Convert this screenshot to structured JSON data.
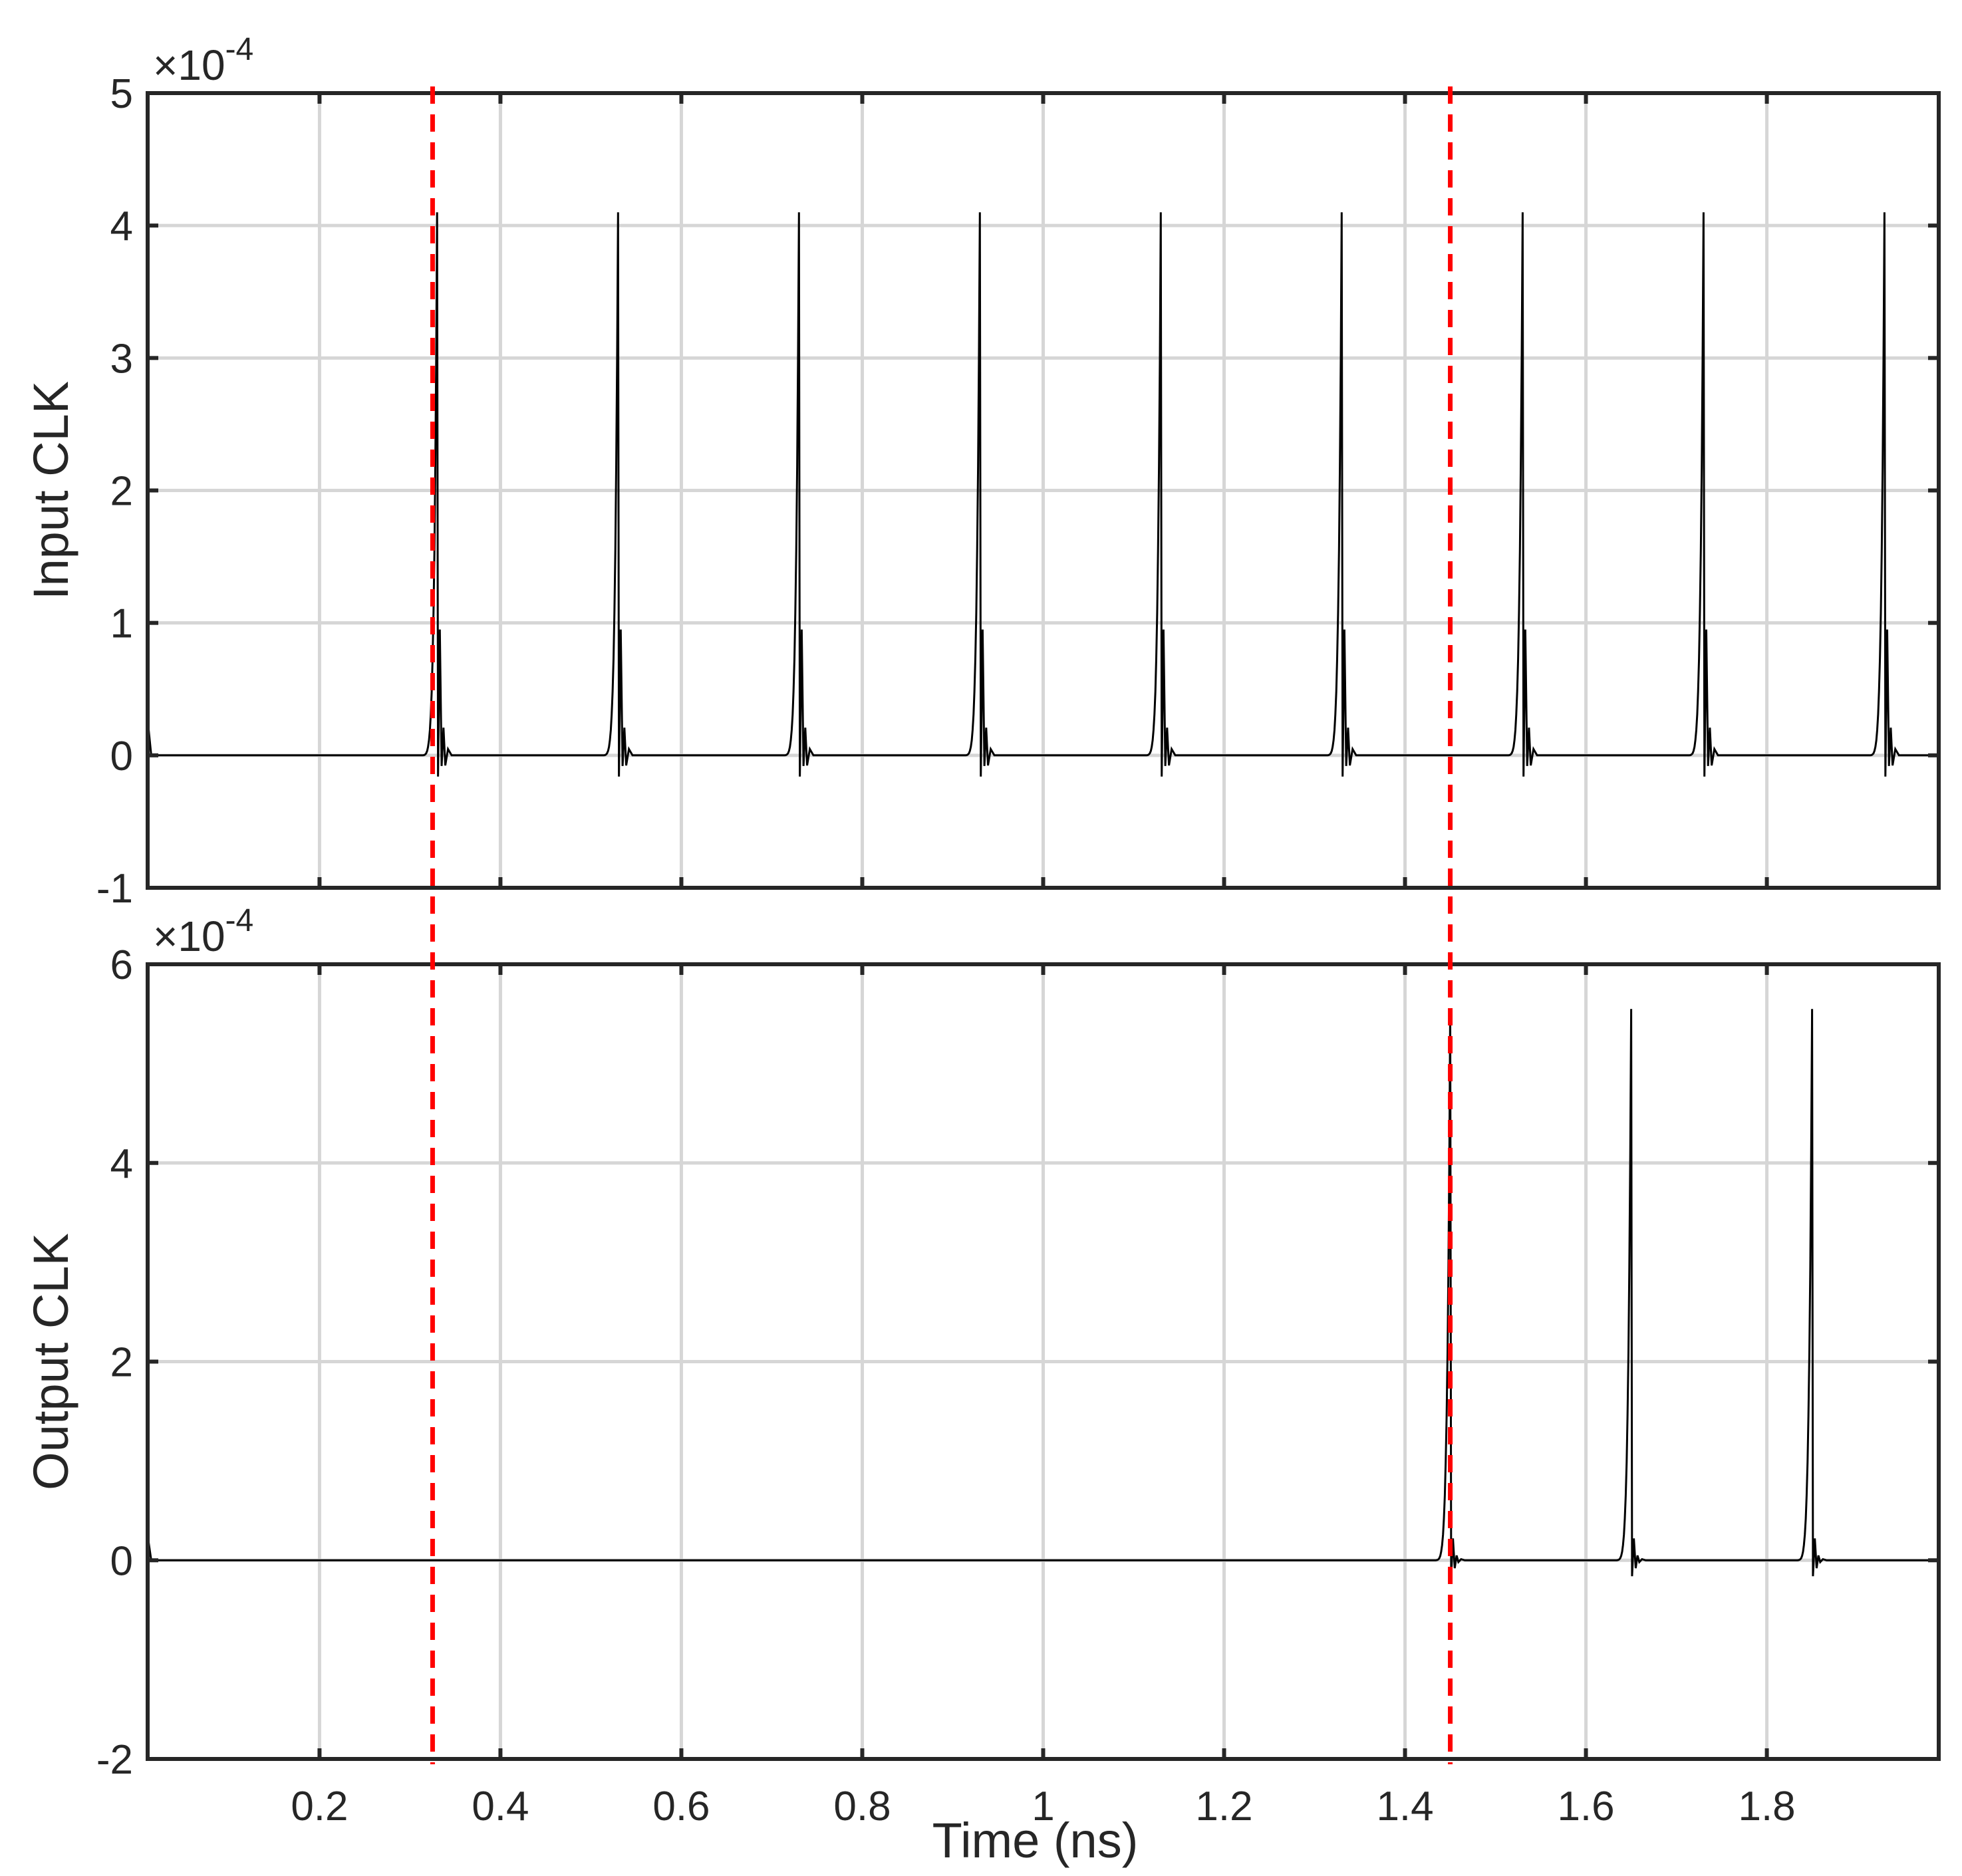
{
  "chart_data": [
    {
      "type": "line",
      "ylabel": "Input CLK",
      "xlabel": "",
      "exponent_prefix": "×10",
      "exponent_power": "-4",
      "xlim": [
        0.01,
        1.99
      ],
      "ylim": [
        -1,
        5
      ],
      "xticks": [
        0.2,
        0.4,
        0.6,
        0.8,
        1,
        1.2,
        1.4,
        1.6,
        1.8
      ],
      "yticks": [
        -1,
        0,
        1,
        2,
        3,
        4,
        5
      ],
      "ytick_labels": [
        "-1",
        "0",
        "1",
        "2",
        "3",
        "4",
        "5"
      ],
      "grid": true,
      "baseline": 0,
      "initial_transient": 0.27,
      "pulse_peak": 4.1,
      "pulse_overshoot": 0.95,
      "pulse_undershoot": -0.16,
      "pulse_times_ns": [
        0.33,
        0.53,
        0.73,
        0.93,
        1.13,
        1.33,
        1.53,
        1.73,
        1.93
      ]
    },
    {
      "type": "line",
      "ylabel": "Output CLK",
      "xlabel": "Time (ns)",
      "exponent_prefix": "×10",
      "exponent_power": "-4",
      "xlim": [
        0.01,
        1.99
      ],
      "ylim": [
        -2,
        6
      ],
      "xticks": [
        0.2,
        0.4,
        0.6,
        0.8,
        1,
        1.2,
        1.4,
        1.6,
        1.8
      ],
      "xtick_labels": [
        "0.2",
        "0.4",
        "0.6",
        "0.8",
        "1",
        "1.2",
        "1.4",
        "1.6",
        "1.8"
      ],
      "yticks": [
        -2,
        0,
        2,
        4,
        6
      ],
      "ytick_labels": [
        "-2",
        "0",
        "2",
        "4",
        "6"
      ],
      "grid": true,
      "baseline": 0,
      "initial_transient": 0.25,
      "pulse_peak": 5.55,
      "pulse_overshoot": 0.22,
      "pulse_undershoot": -0.16,
      "pulse_times_ns": [
        1.45,
        1.65,
        1.85
      ]
    }
  ],
  "markers": {
    "color": "#ff0000",
    "style": "dashed",
    "x_ns": [
      0.325,
      1.45
    ]
  },
  "colors": {
    "signal": "#000000",
    "grid": "#d6d6d6",
    "axes": "#262626",
    "marker": "#ff0000"
  }
}
